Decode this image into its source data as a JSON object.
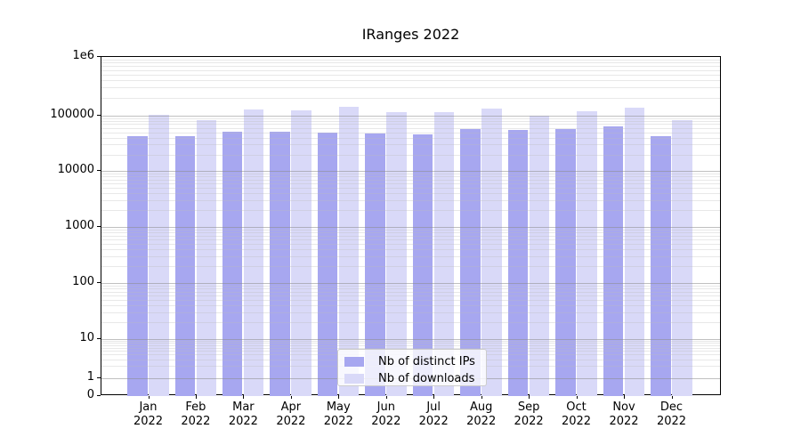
{
  "chart_data": {
    "type": "bar",
    "title": "IRanges 2022",
    "xlabel": "",
    "ylabel": "",
    "yscale": "symlog",
    "ytick_values": [
      0,
      1,
      10,
      100,
      1000,
      10000,
      100000,
      1000000
    ],
    "ytick_labels": [
      "0",
      "1",
      "10",
      "100",
      "1000",
      "10000",
      "100000",
      "1e6"
    ],
    "grid": "major and minor horizontal gridlines",
    "legend_position": "lower center",
    "categories": [
      "Jan 2022",
      "Feb 2022",
      "Mar 2022",
      "Apr 2022",
      "May 2022",
      "Jun 2022",
      "Jul 2022",
      "Aug 2022",
      "Sep 2022",
      "Oct 2022",
      "Nov 2022",
      "Dec 2022"
    ],
    "series": [
      {
        "name": "Nb of distinct IPs",
        "color": "#a7a7f0",
        "values": [
          42000,
          42000,
          51000,
          52000,
          50000,
          47000,
          46000,
          58000,
          56000,
          58000,
          63000,
          43000
        ]
      },
      {
        "name": "Nb of downloads",
        "color": "#d9d9f8",
        "values": [
          101000,
          83000,
          128000,
          121000,
          139000,
          115000,
          113000,
          132000,
          100000,
          118000,
          136000,
          82000
        ]
      }
    ]
  }
}
